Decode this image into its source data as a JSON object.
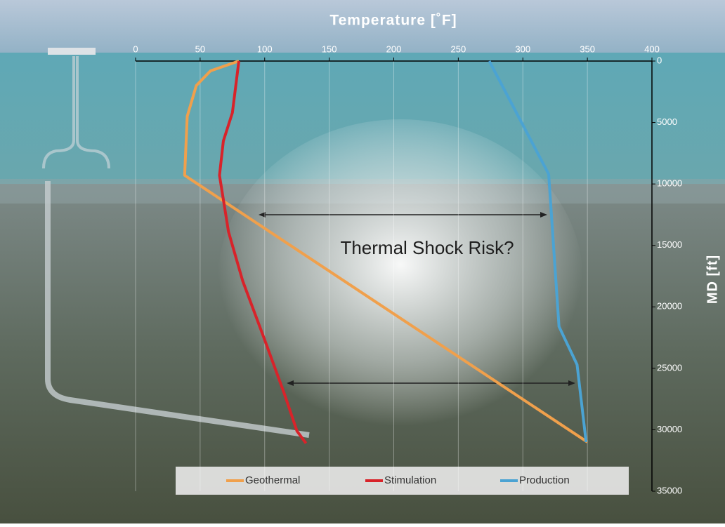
{
  "chart_data": {
    "type": "line",
    "title": "Temperature [˚F]",
    "y_label": "MD [ft]",
    "annotation": "Thermal Shock Risk?",
    "xlim": [
      0,
      400
    ],
    "xticks": [
      0,
      50,
      100,
      150,
      200,
      250,
      300,
      350,
      400
    ],
    "ylim": [
      0,
      35000
    ],
    "yticks": [
      0,
      5000,
      10000,
      15000,
      20000,
      25000,
      30000,
      35000
    ],
    "y_inverted": true,
    "x_axis_position": "top",
    "y_axis_position": "right",
    "grid": true,
    "series": [
      {
        "name": "Geothermal",
        "color": "#f0a04c",
        "x": [
          80,
          58,
          47,
          40,
          38,
          350
        ],
        "y": [
          0,
          800,
          2000,
          4500,
          9300,
          31000
        ]
      },
      {
        "name": "Stimulation",
        "color": "#d8232a",
        "x": [
          80,
          75,
          68,
          65,
          72,
          83,
          99,
          115,
          125,
          132
        ],
        "y": [
          0,
          4200,
          6500,
          9300,
          13900,
          17900,
          22400,
          27000,
          30100,
          31100
        ]
      },
      {
        "name": "Production",
        "color": "#4ba3d3",
        "x": [
          274,
          320,
          328,
          342,
          349
        ],
        "y": [
          0,
          9200,
          21600,
          24700,
          31000
        ]
      }
    ]
  }
}
